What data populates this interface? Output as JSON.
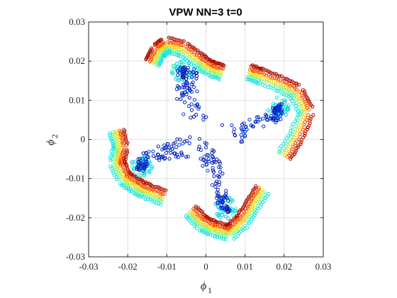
{
  "chart_data": {
    "type": "scatter",
    "title": "VPW NN=3 t=0",
    "xlabel": "ϕ",
    "xlabel_sub": "1",
    "ylabel": "ϕ",
    "ylabel_sub": "2",
    "xlim": [
      -0.03,
      0.03
    ],
    "ylim": [
      -0.03,
      0.03
    ],
    "xticks": [
      "-0.03",
      "-0.02",
      "-0.01",
      "0",
      "0.01",
      "0.02",
      "0.03"
    ],
    "yticks": [
      "-0.03",
      "-0.02",
      "-0.01",
      "0",
      "0.01",
      "0.02",
      "0.03"
    ],
    "grid": true,
    "marker": "open-circle",
    "colormap": "jet",
    "colormap_stops": [
      "#00008f",
      "#0050ff",
      "#00d2ff",
      "#64ff96",
      "#ffdc00",
      "#ff5a00",
      "#a00000"
    ],
    "clusters": [
      {
        "ridge": [
          [
            -0.0135,
            0.0195
          ],
          [
            -0.012,
            0.0225
          ],
          [
            -0.01,
            0.024
          ],
          [
            -0.006,
            0.023
          ],
          [
            -0.002,
            0.02
          ],
          [
            0.001,
            0.018
          ],
          [
            0.004,
            0.017
          ]
        ],
        "core": [
          [
            -0.006,
            0.0175
          ],
          [
            -0.0035,
            0.017
          ],
          [
            -0.0045,
            0.014
          ],
          [
            -0.006,
            0.012
          ],
          [
            -0.004,
            0.01
          ],
          [
            -0.003,
            0.007
          ],
          [
            -0.002,
            0.004
          ]
        ]
      },
      {
        "ridge": [
          [
            0.011,
            0.017
          ],
          [
            0.014,
            0.016
          ],
          [
            0.019,
            0.014
          ],
          [
            0.023,
            0.012
          ],
          [
            0.0255,
            0.007
          ],
          [
            0.023,
            0.001
          ],
          [
            0.02,
            -0.004
          ]
        ],
        "core": [
          [
            0.0185,
            0.008
          ],
          [
            0.018,
            0.006
          ],
          [
            0.015,
            0.005
          ],
          [
            0.013,
            0.004
          ],
          [
            0.01,
            0.003
          ],
          [
            0.008,
            0.002
          ],
          [
            0.005,
            0.001
          ]
        ]
      },
      {
        "ridge": [
          [
            -0.004,
            -0.0185
          ],
          [
            -0.001,
            -0.0215
          ],
          [
            0.002,
            -0.023
          ],
          [
            0.006,
            -0.024
          ],
          [
            0.0095,
            -0.021
          ],
          [
            0.012,
            -0.017
          ],
          [
            0.0145,
            -0.013
          ]
        ],
        "core": [
          [
            0.005,
            -0.0175
          ],
          [
            0.004,
            -0.015
          ],
          [
            0.0035,
            -0.012
          ],
          [
            0.0025,
            -0.009
          ],
          [
            0.0015,
            -0.006
          ],
          [
            0.001,
            -0.004
          ],
          [
            0.0,
            -0.002
          ]
        ]
      },
      {
        "ridge": [
          [
            -0.023,
            0.002
          ],
          [
            -0.022,
            -0.002
          ],
          [
            -0.023,
            -0.006
          ],
          [
            -0.021,
            -0.01
          ],
          [
            -0.018,
            -0.012
          ],
          [
            -0.015,
            -0.0135
          ],
          [
            -0.011,
            -0.015
          ]
        ],
        "core": [
          [
            -0.0165,
            -0.007
          ],
          [
            -0.0155,
            -0.005
          ],
          [
            -0.013,
            -0.004
          ],
          [
            -0.01,
            -0.003
          ],
          [
            -0.008,
            -0.0025
          ],
          [
            -0.006,
            -0.002
          ],
          [
            -0.004,
            -0.0015
          ]
        ]
      }
    ]
  }
}
